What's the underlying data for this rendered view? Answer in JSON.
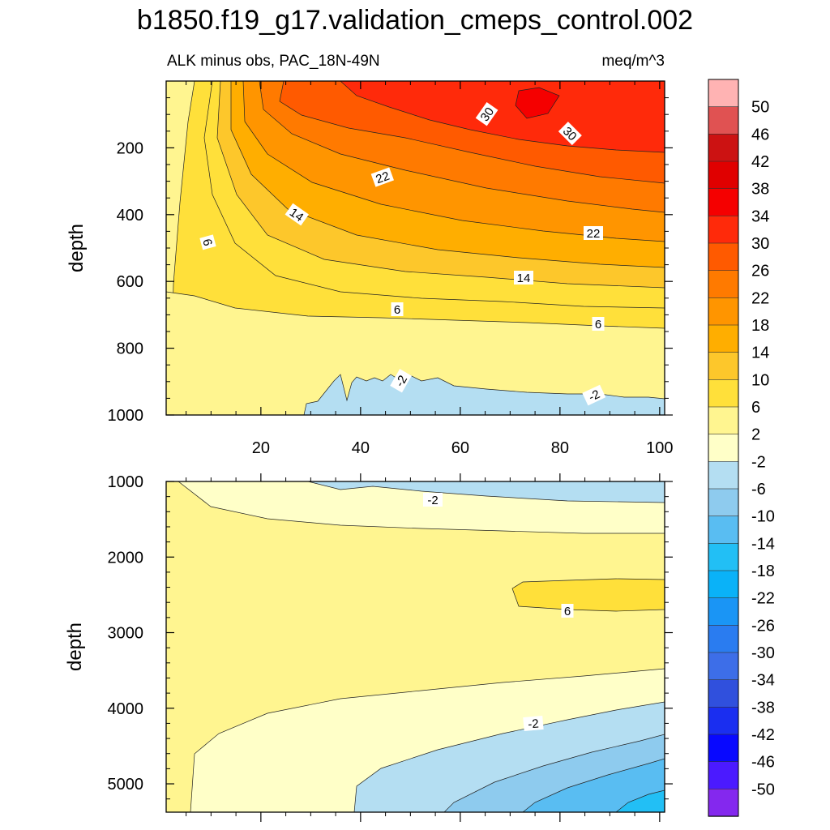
{
  "title": "b1850.f19_g17.validation_cmeps_control.002",
  "chart_data": {
    "type": "contour",
    "variable": "ALK minus obs",
    "region": "PAC_18N-49N",
    "units": "meq/m^3",
    "subtitle_left": "ALK minus obs, PAC_18N-49N",
    "subtitle_right": "meq/m^3",
    "contour_interval": 4,
    "colorbar": {
      "levels": [
        "50",
        "46",
        "42",
        "38",
        "34",
        "30",
        "26",
        "22",
        "18",
        "14",
        "10",
        "6",
        "2",
        "-2",
        "-6",
        "-10",
        "-14",
        "-18",
        "-22",
        "-26",
        "-30",
        "-34",
        "-38",
        "-42",
        "-46",
        "-50"
      ],
      "colors": [
        "#ffb3b3",
        "#e05252",
        "#cc1212",
        "#e00000",
        "#f50000",
        "#ff2a0a",
        "#ff5a00",
        "#ff7a00",
        "#ff9500",
        "#ffae00",
        "#fdc72b",
        "#ffe03a",
        "#fff590",
        "#ffffc8",
        "#b4def2",
        "#8ecbee",
        "#59bdf2",
        "#22bff5",
        "#0ab2f8",
        "#1a95f5",
        "#2a7cf0",
        "#3d6ee8",
        "#3050dd",
        "#1a2ef0",
        "#0808ff",
        "#4b1aff",
        "#8428ee"
      ]
    },
    "panels": [
      {
        "name": "upper",
        "ylabel": "depth",
        "x_range": [
          1,
          101
        ],
        "y_range": [
          0,
          1000
        ],
        "x_ticks": [
          "20",
          "40",
          "60",
          "80",
          "100"
        ],
        "y_ticks": [
          "200",
          "400",
          "600",
          "800",
          "1000"
        ],
        "contour_labels": [
          "30",
          "30",
          "22",
          "22",
          "14",
          "14",
          "6",
          "6",
          "6",
          "-2",
          "-2"
        ]
      },
      {
        "name": "lower",
        "ylabel": "depth",
        "x_range": [
          1,
          101
        ],
        "y_range": [
          1000,
          5375
        ],
        "y_ticks": [
          "1000",
          "2000",
          "3000",
          "4000",
          "5000"
        ],
        "contour_labels": [
          "-2",
          "6",
          "-2"
        ]
      }
    ]
  }
}
